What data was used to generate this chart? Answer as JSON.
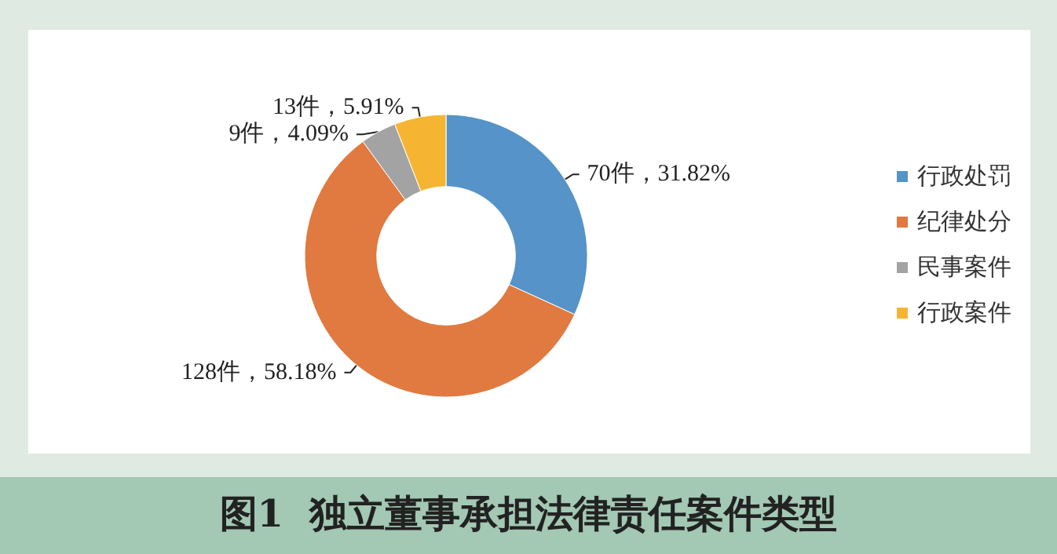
{
  "chart_data": {
    "type": "donut",
    "title": "图1  独立董事承担法律责任案件类型",
    "categories": [
      "行政处罚",
      "纪律处分",
      "民事案件",
      "行政案件"
    ],
    "values": [
      70,
      128,
      9,
      13
    ],
    "colors": [
      "#5593c8",
      "#e07a40",
      "#a3a3a3",
      "#f5b533"
    ],
    "value_labels": [
      "70件，31.82%",
      "128件，58.18%",
      "9件，4.09%",
      "13件，5.91%"
    ],
    "legend": "right"
  }
}
